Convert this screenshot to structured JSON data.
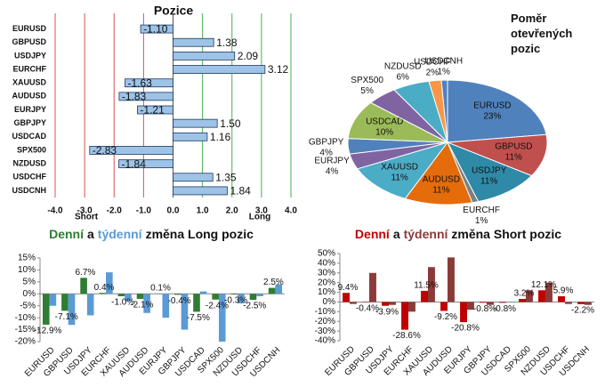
{
  "chart_data": [
    {
      "type": "hbar",
      "title": "Pozice",
      "categories": [
        "EURUSD",
        "GBPUSD",
        "USDJPY",
        "EURCHF",
        "XAUUSD",
        "AUDUSD",
        "EURJPY",
        "GBPJPY",
        "USDCAD",
        "SPX500",
        "NZDUSD",
        "USDCHF",
        "USDCNH"
      ],
      "values": [
        -1.1,
        1.38,
        2.09,
        3.12,
        -1.63,
        -1.83,
        -1.21,
        1.5,
        1.16,
        -2.83,
        -1.84,
        1.35,
        1.84
      ],
      "value_labels": [
        "-1.10",
        "1.38",
        "2.09",
        "3.12",
        "-1.63",
        "-1.83",
        "-1.21",
        "1.50",
        "1.16",
        "-2.83",
        "-1.84",
        "1.35",
        "1.84"
      ],
      "color": "#9dc3e6",
      "xlim": [
        -4,
        4
      ],
      "xticks": [
        {
          "value": -4,
          "label": "-4.0"
        },
        {
          "value": -3,
          "label": "-3.0"
        },
        {
          "value": -2,
          "label": "-2.0"
        },
        {
          "value": -1,
          "label": "-1.0"
        },
        {
          "value": 0,
          "label": "0.0"
        },
        {
          "value": 1,
          "label": "1.0"
        },
        {
          "value": 2,
          "label": "2.0"
        },
        {
          "value": 3,
          "label": "3.0"
        },
        {
          "value": 4,
          "label": "4.0"
        }
      ],
      "grid": true,
      "annotations": [
        "Short",
        "Long"
      ]
    },
    {
      "type": "pie",
      "title": "Poměr otevřených pozic",
      "categories": [
        "EURUSD",
        "GBPUSD",
        "USDJPY",
        "EURCHF",
        "AUDUSD",
        "XAUUSD",
        "EURJPY",
        "GBPJPY",
        "USDCAD",
        "SPX500",
        "NZDUSD",
        "USDCHF",
        "USDCNH"
      ],
      "values": [
        23,
        11,
        11,
        1,
        11,
        11,
        4,
        4,
        10,
        5,
        6,
        2,
        1
      ],
      "value_labels": [
        "23%",
        "11%",
        "11%",
        "1%",
        "11%",
        "11%",
        "4%",
        "4%",
        "10%",
        "5%",
        "6%",
        "2%",
        "1%"
      ],
      "colors": [
        "#4f81bd",
        "#c0504d",
        "#2f8aa8",
        "#7f7f7f",
        "#e46c0a",
        "#4bacc6",
        "#8064a2",
        "#4f81bd",
        "#9bbb59",
        "#8064a2",
        "#4bacc6",
        "#f79646",
        "#4f81bd"
      ]
    },
    {
      "type": "bar",
      "title_join": "a",
      "title_rest": "změna Long pozic",
      "categories": [
        "EURUSD",
        "GBPUSD",
        "USDJPY",
        "EURCHF",
        "XAUUSD",
        "AUDUSD",
        "EURJPY",
        "GBPJPY",
        "USDCAD",
        "SPX500",
        "NZDUSD",
        "USDCHF",
        "USDCNH"
      ],
      "series": [
        {
          "name": "Denní",
          "color": "#2e7d32",
          "values": [
            -12.9,
            -7.1,
            6.7,
            0.4,
            -1.0,
            -2.1,
            0.1,
            -0.4,
            -7.5,
            -2.4,
            -0.3,
            -2.5,
            2.5
          ],
          "value_labels": [
            "-12.9%",
            "-7.1%",
            "6.7%",
            "0.4%",
            "-1.0%",
            "-2.1%",
            "0.1%",
            "-0.4%",
            "-7.5%",
            "-2.4%",
            "-0.3%",
            "-2.5%",
            "2.5%"
          ]
        },
        {
          "name": "týdenní",
          "color": "#5b9bd5",
          "values": [
            -5,
            -13,
            -9,
            9,
            -3,
            -8,
            -10,
            -15,
            1,
            -20,
            -4,
            -1,
            4
          ]
        }
      ],
      "ylim": [
        -20,
        15
      ],
      "yticks": [
        {
          "value": -20,
          "label": "-20%"
        },
        {
          "value": -15,
          "label": "-15%"
        },
        {
          "value": -10,
          "label": "-10%"
        },
        {
          "value": -5,
          "label": "-5%"
        },
        {
          "value": 0,
          "label": "0%"
        },
        {
          "value": 5,
          "label": "5%"
        },
        {
          "value": 10,
          "label": "10%"
        },
        {
          "value": 15,
          "label": "15%"
        }
      ]
    },
    {
      "type": "bar",
      "title_join": "a",
      "title_rest": "změna Short pozic",
      "categories": [
        "EURUSD",
        "GBPUSD",
        "USDJPY",
        "EURCHF",
        "XAUUSD",
        "AUDUSD",
        "EURJPY",
        "GBPJPY",
        "USDCAD",
        "SPX500",
        "NZDUSD",
        "USDCHF",
        "USDCNH"
      ],
      "series": [
        {
          "name": "Denní",
          "color": "#c00000",
          "values": [
            9.4,
            -0.4,
            -3.9,
            -28.6,
            11.5,
            -9.2,
            -20.8,
            -0.8,
            -0.8,
            3.2,
            12.1,
            5.9,
            -2.2
          ],
          "value_labels": [
            "9.4%",
            "-0.4%",
            "-3.9%",
            "-28.6%",
            "11.5%",
            "-9.2%",
            "-20.8%",
            "-0.8%",
            "-0.8%",
            "3.2%",
            "12.1%",
            "5.9%",
            "-2.2%"
          ]
        },
        {
          "name": "týdenní",
          "color": "#8b3a3a",
          "values": [
            -2,
            30,
            -3,
            -10,
            36,
            46,
            -8,
            -3,
            0,
            12,
            20,
            -2,
            -3
          ]
        }
      ],
      "ylim": [
        -40,
        50
      ],
      "yticks": [
        {
          "value": -40,
          "label": "-40%"
        },
        {
          "value": -30,
          "label": "-30%"
        },
        {
          "value": -20,
          "label": "-20%"
        },
        {
          "value": -10,
          "label": "-10%"
        },
        {
          "value": 0,
          "label": "0%"
        },
        {
          "value": 10,
          "label": "10%"
        },
        {
          "value": 20,
          "label": "20%"
        },
        {
          "value": 30,
          "label": "30%"
        },
        {
          "value": 40,
          "label": "40%"
        },
        {
          "value": 50,
          "label": "50%"
        }
      ]
    }
  ]
}
